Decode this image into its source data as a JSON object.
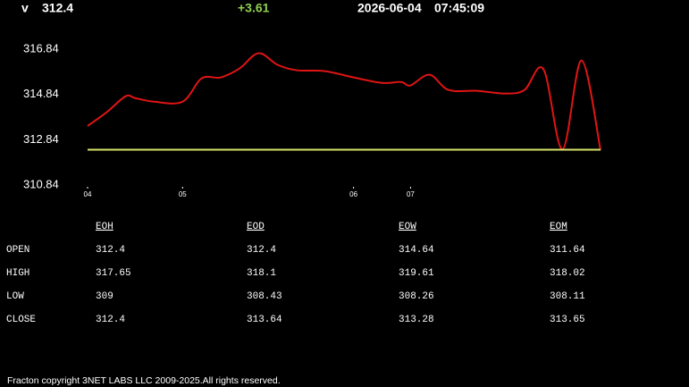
{
  "header": {
    "symbol": "v",
    "price": 312.4,
    "change": "+3.61",
    "date": "2026-06-04",
    "time": "07:45:09"
  },
  "chart_data": {
    "type": "line",
    "x": [
      0,
      2,
      4,
      5,
      7,
      10,
      12,
      14,
      16,
      18,
      20,
      22,
      25,
      28,
      31,
      33,
      34,
      36,
      38,
      41,
      44,
      46,
      48,
      50,
      52,
      54
    ],
    "series": [
      {
        "color": "#e01414",
        "values": [
          313.45,
          314.05,
          314.76,
          314.68,
          314.52,
          314.52,
          315.55,
          315.59,
          315.99,
          316.66,
          316.15,
          315.91,
          315.87,
          315.59,
          315.35,
          315.39,
          315.24,
          315.71,
          315.04,
          315.0,
          314.88,
          315.04,
          315.95,
          312.42,
          316.34,
          312.38
        ]
      },
      {
        "color": "#d9e36a",
        "values": [
          312.4,
          312.4,
          312.4,
          312.4,
          312.4,
          312.4,
          312.4,
          312.4,
          312.4,
          312.4,
          312.4,
          312.4,
          312.4,
          312.4,
          312.4,
          312.4,
          312.4,
          312.4,
          312.4,
          312.4,
          312.4,
          312.4,
          312.4,
          312.4,
          312.4,
          312.4
        ]
      }
    ],
    "xlim": [
      0,
      54
    ],
    "xticks": [
      {
        "value": 0,
        "label": "04"
      },
      {
        "value": 10,
        "label": "05"
      },
      {
        "value": 28,
        "label": "06"
      },
      {
        "value": 34,
        "label": "07"
      }
    ],
    "ylim": [
      310.84,
      316.84
    ],
    "yticks": [
      310.84,
      312.84,
      314.84,
      316.84
    ]
  },
  "table": {
    "columns": [
      "EOH",
      "EOD",
      "EOW",
      "EOM"
    ],
    "rows": [
      {
        "label": "OPEN",
        "values": [
          312.4,
          312.4,
          314.64,
          311.64
        ]
      },
      {
        "label": "HIGH",
        "values": [
          317.65,
          318.1,
          319.61,
          318.02
        ]
      },
      {
        "label": "LOW",
        "values": [
          309,
          308.43,
          308.26,
          308.11
        ]
      },
      {
        "label": "CLOSE",
        "values": [
          312.4,
          313.64,
          313.28,
          313.65
        ]
      }
    ]
  },
  "footer": "Fracton copyright 3NET LABS LLC 2009-2025.All rights reserved."
}
